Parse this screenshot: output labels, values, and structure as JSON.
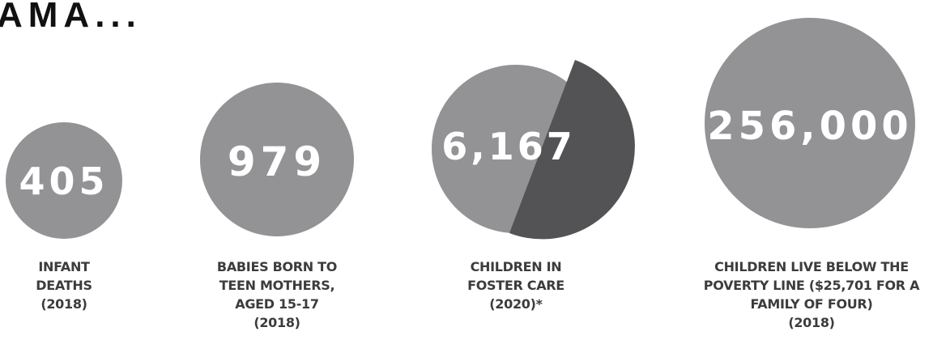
{
  "heading": "AMA...",
  "colors": {
    "circle": "#939396",
    "circle_dark": "#535355",
    "text": "#3c3c3e",
    "number": "#ffffff"
  },
  "stats": [
    {
      "value": "405",
      "caption_lines": [
        "INFANT",
        "DEATHS",
        "(2018)"
      ]
    },
    {
      "value": "979",
      "caption_lines": [
        "BABIES BORN TO",
        "TEEN MOTHERS,",
        "AGED 15-17",
        "(2018)"
      ]
    },
    {
      "value": "6,167",
      "caption_lines": [
        "CHILDREN IN",
        "FOSTER CARE",
        "(2020)*"
      ]
    },
    {
      "value": "256,000",
      "caption_lines": [
        "CHILDREN LIVE BELOW THE",
        "POVERTY LINE ($25,701 FOR A",
        "FAMILY OF FOUR)",
        "(2018)"
      ]
    }
  ]
}
